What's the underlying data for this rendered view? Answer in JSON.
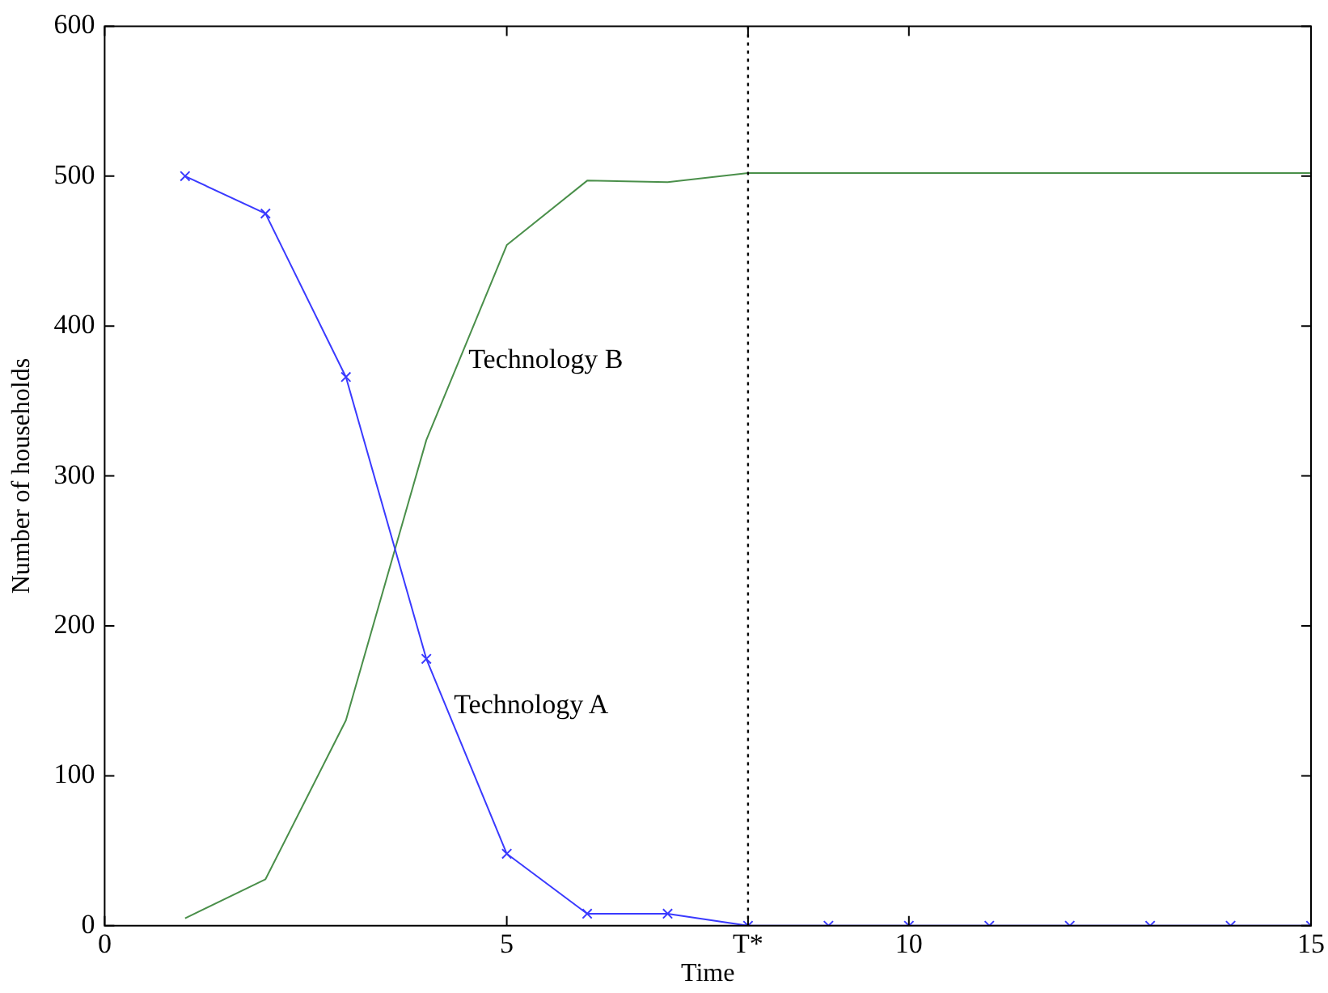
{
  "chart_data": {
    "type": "line",
    "xlabel": "Time",
    "ylabel": "Number of households",
    "x": [
      1,
      2,
      3,
      4,
      5,
      6,
      7,
      8,
      9,
      10,
      11,
      12,
      13,
      14,
      15
    ],
    "series": [
      {
        "name": "Technology A",
        "color": "#3a3aff",
        "marker": "cross",
        "values": [
          500,
          475,
          366,
          178,
          48,
          8,
          8,
          0,
          0,
          0,
          0,
          0,
          0,
          0,
          0
        ]
      },
      {
        "name": "Technology B",
        "color": "#4a8f4a",
        "marker": "none",
        "values": [
          5,
          31,
          137,
          324,
          454,
          497,
          496,
          502,
          502,
          502,
          502,
          502,
          502,
          502,
          502
        ]
      }
    ],
    "xlim": [
      0,
      15
    ],
    "xticks": [
      0,
      5,
      {
        "value": 8,
        "label": "T*"
      },
      10,
      15
    ],
    "ylim": [
      0,
      600
    ],
    "yticks": [
      0,
      100,
      200,
      300,
      400,
      500,
      600
    ],
    "ref_lines": [
      {
        "axis": "x",
        "value": 8,
        "color": "#000000",
        "line_style": "dotted"
      }
    ],
    "grid": false,
    "legend": false,
    "line_style": "solid"
  }
}
